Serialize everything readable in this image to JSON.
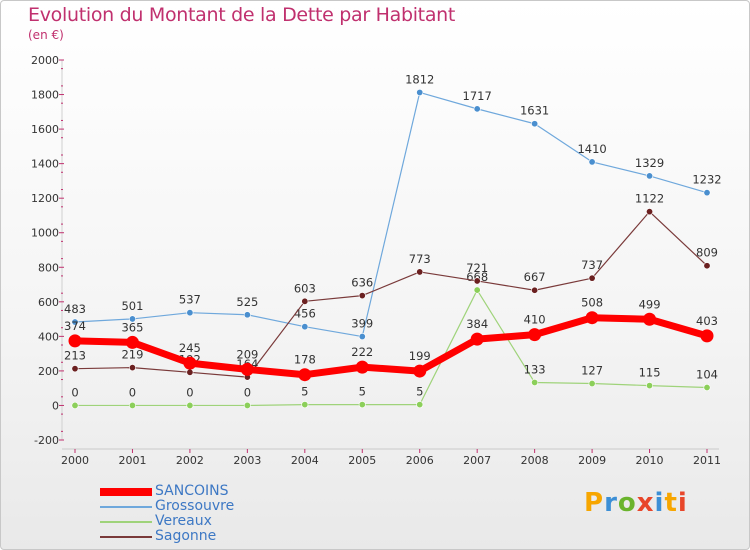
{
  "title": "Evolution du Montant de la Dette par Habitant",
  "subtitle": "(en €)",
  "logo": {
    "text": "Proxiti",
    "colors": [
      "#f7a600",
      "#3c8fd6",
      "#6ab42d",
      "#e8462a",
      "#3c8fd6",
      "#f7a600",
      "#e8462a"
    ]
  },
  "chart_data": {
    "type": "line",
    "x": [
      "2000",
      "2001",
      "2002",
      "2003",
      "2004",
      "2005",
      "2006",
      "2007",
      "2008",
      "2009",
      "2010",
      "2011"
    ],
    "ylim": [
      -200,
      2000
    ],
    "yticks": [
      "-200",
      "0",
      "200",
      "400",
      "600",
      "800",
      "1000",
      "1200",
      "1400",
      "1600",
      "1800",
      "2000"
    ],
    "grid": false,
    "legend_position": "bottom-left",
    "series": [
      {
        "name": "Grossouvre",
        "color": "#6fa8dc",
        "marker": "#4a8fcf",
        "values": [
          483,
          501,
          537,
          525,
          456,
          399,
          1812,
          1717,
          1631,
          1410,
          1329,
          1232
        ]
      },
      {
        "name": "Vereaux",
        "color": "#9fd37a",
        "marker": "#8ccf5a",
        "values": [
          0,
          0,
          0,
          0,
          5,
          5,
          5,
          668,
          133,
          127,
          115,
          104
        ]
      },
      {
        "name": "Sagonne",
        "color": "#7a3a3a",
        "marker": "#6b2020",
        "values": [
          213,
          219,
          192,
          164,
          603,
          636,
          773,
          721,
          667,
          737,
          1122,
          809
        ]
      },
      {
        "name": "SANCOINS",
        "color": "#ff0000",
        "marker": "#ff0000",
        "values": [
          374,
          365,
          245,
          209,
          178,
          222,
          199,
          384,
          410,
          508,
          499,
          403
        ]
      }
    ],
    "legend": [
      {
        "name": "SANCOINS",
        "color": "#ff0000",
        "label_color": "#3d78c4"
      },
      {
        "name": "Grossouvre",
        "color": "#6fa8dc",
        "label_color": "#3d78c4"
      },
      {
        "name": "Vereaux",
        "color": "#9fd37a",
        "label_color": "#3d78c4"
      },
      {
        "name": "Sagonne",
        "color": "#7a3a3a",
        "label_color": "#3d78c4"
      }
    ]
  }
}
